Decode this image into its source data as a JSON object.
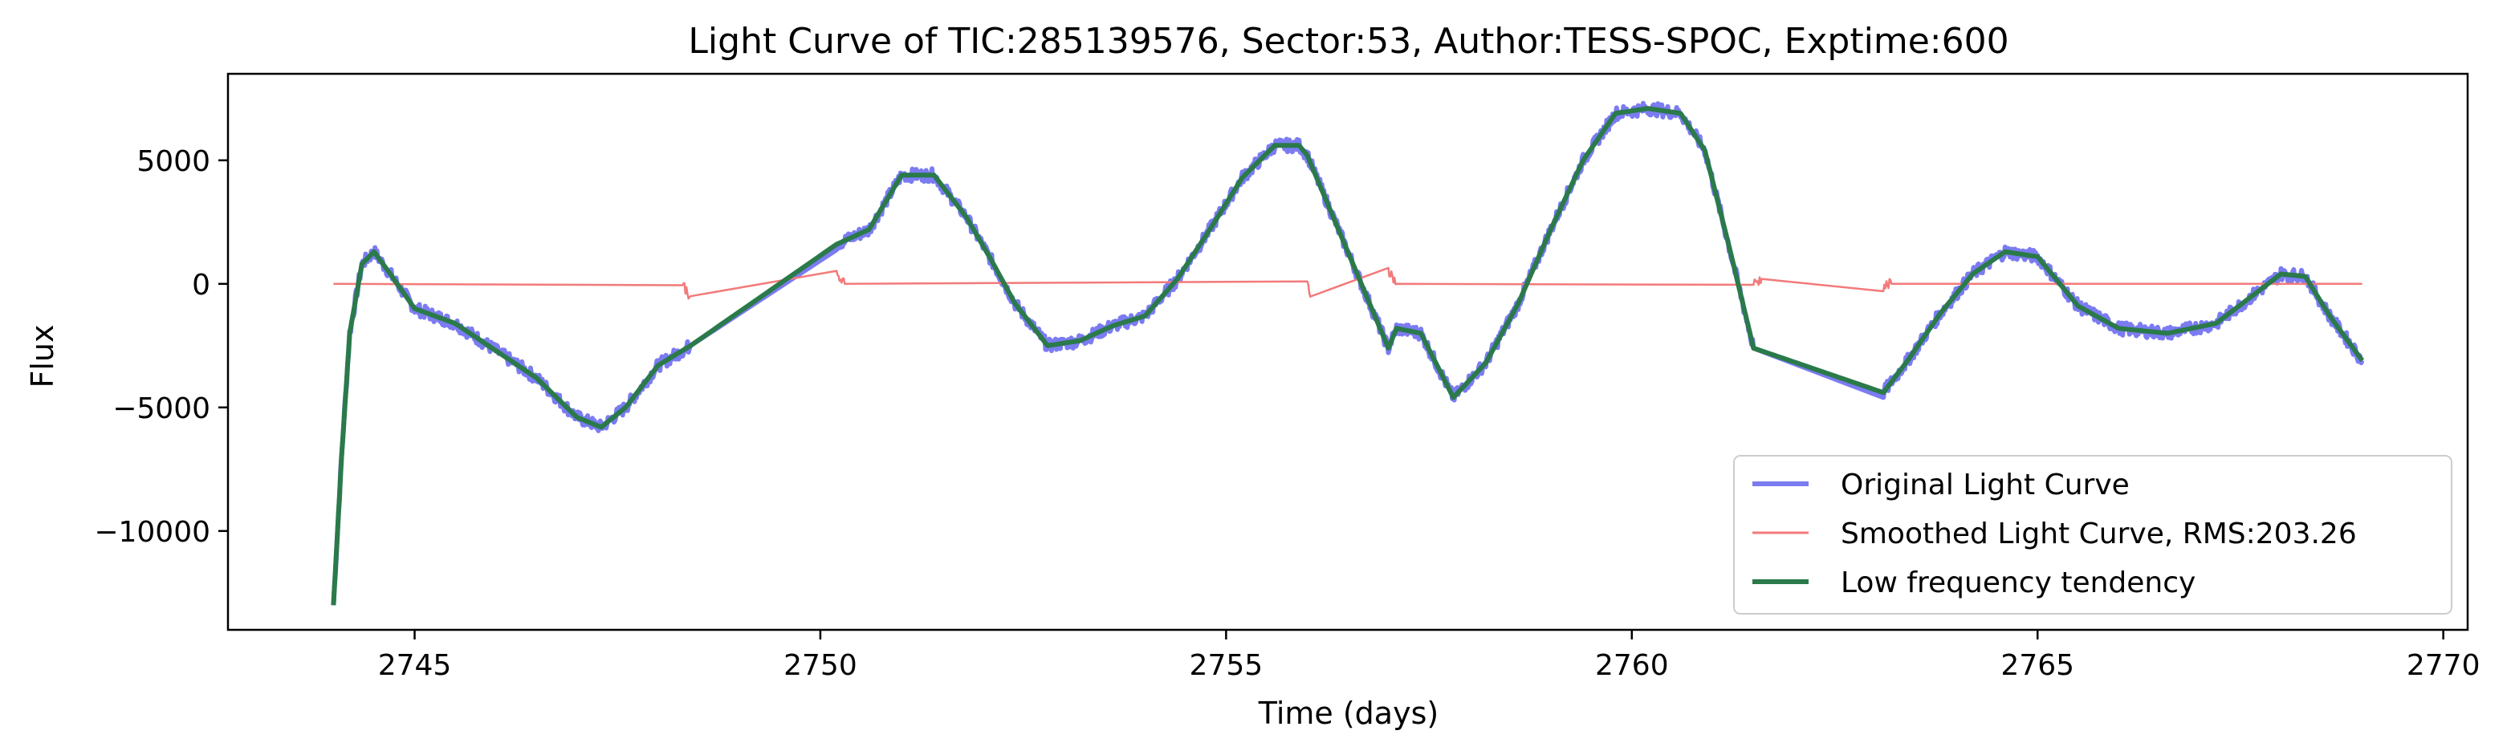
{
  "chart_data": {
    "type": "line",
    "title": "Light Curve of TIC:285139576, Sector:53, Author:TESS-SPOC, Exptime:600",
    "xlabel": "Time (days)",
    "ylabel": "Flux",
    "xlim": [
      2742.7,
      2770.3
    ],
    "ylim": [
      -14000,
      8500
    ],
    "xticks": [
      2745,
      2750,
      2755,
      2760,
      2765,
      2770
    ],
    "xtick_labels": [
      "2745",
      "2750",
      "2755",
      "2760",
      "2765",
      "2770"
    ],
    "yticks": [
      5000,
      0,
      -5000,
      -10000
    ],
    "ytick_labels": [
      "5000",
      "0",
      "−5000",
      "−10000"
    ],
    "grid": false,
    "legend_position": "lower-right",
    "series": [
      {
        "name": "Original Light Curve",
        "color": "#7b7bf2",
        "style": "noisy",
        "x": [
          2744.0,
          2744.1,
          2744.2,
          2744.35,
          2744.5,
          2744.7,
          2745.0,
          2745.5,
          2746.0,
          2746.5,
          2747.0,
          2747.3,
          2747.6,
          2748.0,
          2748.4,
          2750.2,
          2750.6,
          2751.0,
          2751.4,
          2751.8,
          2752.1,
          2752.4,
          2752.8,
          2753.2,
          2753.6,
          2754.0,
          2754.4,
          2754.8,
          2755.2,
          2755.6,
          2755.9,
          2756.0,
          2757.0,
          2757.1,
          2757.4,
          2757.8,
          2758.2,
          2758.6,
          2759.0,
          2759.4,
          2759.8,
          2760.2,
          2760.6,
          2760.9,
          2761.2,
          2761.5,
          2763.1,
          2763.4,
          2763.8,
          2764.2,
          2764.6,
          2765.0,
          2765.5,
          2766.0,
          2766.6,
          2767.2,
          2767.6,
          2768.0,
          2768.3,
          2768.6,
          2769.0
        ],
        "y": [
          -13000,
          -7000,
          -2000,
          800,
          1300,
          400,
          -1000,
          -1600,
          -2700,
          -3800,
          -5400,
          -5800,
          -5000,
          -3300,
          -2500,
          1600,
          2200,
          4400,
          4400,
          2700,
          1000,
          -800,
          -2500,
          -2300,
          -1700,
          -1300,
          200,
          2200,
          4300,
          5600,
          5600,
          5200,
          -2600,
          -1800,
          -2000,
          -4600,
          -3200,
          -800,
          2200,
          5000,
          6900,
          7100,
          6900,
          5400,
          1500,
          -2600,
          -4400,
          -3100,
          -1200,
          400,
          1300,
          1100,
          -900,
          -1800,
          -2000,
          -1600,
          -600,
          400,
          300,
          -1300,
          -3100
        ]
      },
      {
        "name": "Smoothed Light Curve, RMS:203.26",
        "color": "#f37a7a",
        "style": "noisy",
        "x": [
          2744.0,
          2748.3,
          2748.4,
          2750.2,
          2750.3,
          2756.0,
          2756.05,
          2757.0,
          2757.1,
          2761.5,
          2761.6,
          2763.1,
          2763.2,
          2769.0
        ],
        "y": [
          0,
          0,
          -500,
          300,
          0,
          0,
          -500,
          600,
          0,
          0,
          200,
          -100,
          0,
          0
        ]
      },
      {
        "name": "Low frequency tendency",
        "color": "#2a7a4a",
        "style": "smooth",
        "x": [
          2744.0,
          2744.1,
          2744.2,
          2744.35,
          2744.5,
          2744.7,
          2745.0,
          2745.5,
          2746.0,
          2746.5,
          2747.0,
          2747.3,
          2747.6,
          2748.0,
          2748.4,
          2750.2,
          2750.6,
          2751.0,
          2751.4,
          2751.8,
          2752.1,
          2752.4,
          2752.8,
          2753.2,
          2753.6,
          2754.0,
          2754.4,
          2754.8,
          2755.2,
          2755.6,
          2755.9,
          2756.0,
          2757.0,
          2757.1,
          2757.4,
          2757.8,
          2758.2,
          2758.6,
          2759.0,
          2759.4,
          2759.8,
          2760.2,
          2760.6,
          2760.9,
          2761.2,
          2761.5,
          2763.1,
          2763.4,
          2763.8,
          2764.2,
          2764.6,
          2765.0,
          2765.5,
          2766.0,
          2766.6,
          2767.2,
          2767.6,
          2768.0,
          2768.3,
          2768.6,
          2769.0
        ],
        "y": [
          -13000,
          -7000,
          -2000,
          800,
          1300,
          400,
          -1000,
          -1600,
          -2700,
          -3800,
          -5400,
          -5800,
          -5000,
          -3300,
          -2500,
          1600,
          2200,
          4400,
          4400,
          2700,
          1000,
          -800,
          -2500,
          -2300,
          -1700,
          -1300,
          200,
          2200,
          4300,
          5600,
          5600,
          5200,
          -2600,
          -1800,
          -2000,
          -4600,
          -3200,
          -800,
          2200,
          5000,
          6900,
          7100,
          6900,
          5400,
          1500,
          -2600,
          -4400,
          -3100,
          -1200,
          400,
          1300,
          1100,
          -900,
          -1800,
          -2000,
          -1600,
          -600,
          400,
          300,
          -1300,
          -3100
        ]
      }
    ]
  }
}
